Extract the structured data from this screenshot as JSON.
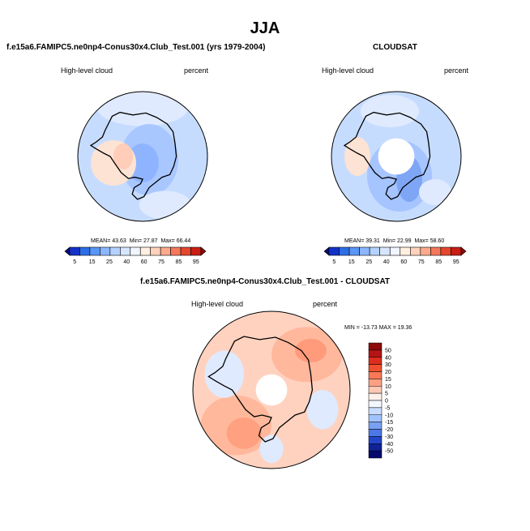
{
  "title": "JJA",
  "panels": [
    {
      "title": "f.e15a6.FAMIPC5.ne0np4-Conus30x4.Club_Test.001 (yrs 1979-2004)",
      "variable": "High-level cloud",
      "units": "percent",
      "stats": {
        "mean_label": "MEAN=",
        "mean": "43.63",
        "min_label": "Min=",
        "min": "27.87",
        "max_label": "Max=",
        "max": "66.44"
      },
      "dominant_color": "#c6dcff",
      "has_hole": false
    },
    {
      "title": "CLOUDSAT",
      "variable": "High-level cloud",
      "units": "percent",
      "stats": {
        "mean_label": "MEAN=",
        "mean": "39.31",
        "min_label": "Min=",
        "min": "22.99",
        "max_label": "Max=",
        "max": "58.60"
      },
      "dominant_color": "#c6dcff",
      "has_hole": true
    },
    {
      "title": "f.e15a6.FAMIPC5.ne0np4-Conus30x4.Club_Test.001 - CLOUDSAT",
      "variable": "High-level cloud",
      "units": "percent",
      "stats_text": "MIN = -13.73  MAX =  19.36",
      "dominant_color": "#ffd2bf",
      "has_hole": true
    }
  ],
  "colorbar_abs": {
    "labels": [
      "5",
      "15",
      "25",
      "40",
      "60",
      "75",
      "85",
      "95"
    ],
    "colors": [
      "#0a0a78",
      "#1432c8",
      "#2d6ee6",
      "#5a96f5",
      "#8cb6ff",
      "#b4d2ff",
      "#d7e6ff",
      "#f0f5ff",
      "#fff0e1",
      "#ffd2bc",
      "#ffaa8c",
      "#f5785a",
      "#e6462d",
      "#c81e14",
      "#8c0a0a"
    ]
  },
  "colorbar_diff": {
    "labels": [
      "50",
      "40",
      "30",
      "20",
      "15",
      "10",
      "5",
      "0",
      "-5",
      "-10",
      "-15",
      "-20",
      "-30",
      "-40",
      "-50"
    ],
    "colors": [
      "#8c0a0a",
      "#b41414",
      "#dc2d1e",
      "#f0502d",
      "#fa7855",
      "#ffa082",
      "#ffc8b4",
      "#fff0eb",
      "#f2f6ff",
      "#c8dcff",
      "#a0c3ff",
      "#78a0f5",
      "#4b78e6",
      "#2346c8",
      "#0f2396",
      "#050a6e"
    ]
  },
  "chart_data": [
    {
      "type": "heatmap",
      "projection": "south-polar-stereographic",
      "title": "f.e15a6.FAMIPC5.ne0np4-Conus30x4.Club_Test.001 (yrs 1979-2004)",
      "variable": "High-level cloud",
      "units": "percent",
      "mean": 43.63,
      "min": 27.87,
      "max": 66.44,
      "contour_levels": [
        5,
        10,
        15,
        20,
        25,
        30,
        40,
        50,
        60,
        70,
        75,
        80,
        85,
        90,
        95
      ]
    },
    {
      "type": "heatmap",
      "projection": "south-polar-stereographic",
      "title": "CLOUDSAT",
      "variable": "High-level cloud",
      "units": "percent",
      "mean": 39.31,
      "min": 22.99,
      "max": 58.6,
      "contour_levels": [
        5,
        10,
        15,
        20,
        25,
        30,
        40,
        50,
        60,
        70,
        75,
        80,
        85,
        90,
        95
      ]
    },
    {
      "type": "heatmap",
      "projection": "south-polar-stereographic",
      "title": "f.e15a6.FAMIPC5.ne0np4-Conus30x4.Club_Test.001 - CLOUDSAT",
      "variable": "High-level cloud",
      "units": "percent",
      "min": -13.73,
      "max": 19.36,
      "contour_levels": [
        -50,
        -40,
        -30,
        -20,
        -15,
        -10,
        -5,
        0,
        5,
        10,
        15,
        20,
        30,
        40,
        50
      ]
    }
  ]
}
